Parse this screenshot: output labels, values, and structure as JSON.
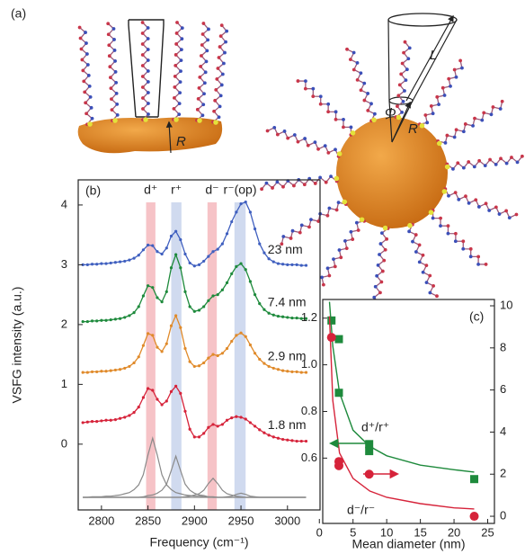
{
  "panel_a": {
    "label": "(a)",
    "left_radius_label": "R",
    "length_label": "L",
    "angle_label": "Φ",
    "right_radius_label": "R"
  },
  "chart_data": [
    {
      "type": "line",
      "panel_label": "(b)",
      "xlabel": "Frequency (cm⁻¹)",
      "ylabel": "VSFG intensity (a.u.)",
      "x": [
        2780,
        2785,
        2790,
        2795,
        2800,
        2805,
        2810,
        2815,
        2820,
        2825,
        2830,
        2835,
        2840,
        2845,
        2850,
        2855,
        2860,
        2865,
        2870,
        2875,
        2880,
        2885,
        2890,
        2895,
        2900,
        2905,
        2910,
        2915,
        2920,
        2925,
        2930,
        2935,
        2940,
        2945,
        2950,
        2955,
        2960,
        2965,
        2970,
        2975,
        2980,
        2985,
        2990,
        2995,
        3000,
        3005,
        3010,
        3015,
        3020
      ],
      "xlim": [
        2775,
        3035
      ],
      "xticks": [
        2800,
        2850,
        2900,
        2950,
        3000
      ],
      "ylim": [
        -1.1,
        4.42
      ],
      "yticks": [
        0,
        1,
        2,
        3,
        4
      ],
      "bands": [
        {
          "label": "d⁺",
          "from": 2848,
          "to": 2858,
          "color": "#f4b9bd"
        },
        {
          "label": "r⁺",
          "from": 2875,
          "to": 2886,
          "color": "#c8d3ec"
        },
        {
          "label": "d⁻",
          "from": 2914,
          "to": 2924,
          "color": "#f4b9bd"
        },
        {
          "label": "r⁻(op)",
          "from": 2943,
          "to": 2955,
          "color": "#c8d3ec"
        }
      ],
      "series": [
        {
          "name": "23 nm",
          "color": "#3f5fbf",
          "values": [
            3.0,
            3.0,
            3.01,
            3.01,
            3.02,
            3.02,
            3.03,
            3.04,
            3.05,
            3.06,
            3.08,
            3.11,
            3.16,
            3.25,
            3.33,
            3.32,
            3.22,
            3.18,
            3.28,
            3.48,
            3.56,
            3.42,
            3.18,
            3.03,
            2.98,
            3.0,
            3.06,
            3.14,
            3.22,
            3.26,
            3.35,
            3.52,
            3.72,
            3.88,
            4.02,
            4.05,
            3.88,
            3.6,
            3.35,
            3.2,
            3.1,
            3.05,
            3.02,
            3.01,
            3.0,
            3.0,
            3.0,
            2.99,
            2.99
          ]
        },
        {
          "name": "7.4 nm",
          "color": "#1e8a3c",
          "values": [
            2.05,
            2.05,
            2.06,
            2.06,
            2.07,
            2.07,
            2.08,
            2.09,
            2.1,
            2.12,
            2.15,
            2.2,
            2.3,
            2.48,
            2.65,
            2.62,
            2.45,
            2.38,
            2.55,
            2.95,
            3.17,
            2.95,
            2.55,
            2.3,
            2.22,
            2.24,
            2.3,
            2.4,
            2.48,
            2.5,
            2.58,
            2.7,
            2.85,
            2.97,
            3.02,
            2.92,
            2.72,
            2.5,
            2.35,
            2.25,
            2.19,
            2.16,
            2.14,
            2.13,
            2.12,
            2.11,
            2.11,
            2.1,
            2.1
          ]
        },
        {
          "name": "2.9 nm",
          "color": "#e08a2a",
          "values": [
            1.2,
            1.2,
            1.21,
            1.21,
            1.22,
            1.22,
            1.23,
            1.24,
            1.25,
            1.27,
            1.3,
            1.36,
            1.46,
            1.65,
            1.85,
            1.82,
            1.62,
            1.55,
            1.68,
            1.98,
            2.15,
            1.95,
            1.6,
            1.38,
            1.3,
            1.31,
            1.36,
            1.44,
            1.5,
            1.48,
            1.52,
            1.6,
            1.72,
            1.82,
            1.86,
            1.8,
            1.66,
            1.52,
            1.42,
            1.35,
            1.3,
            1.27,
            1.25,
            1.23,
            1.22,
            1.21,
            1.21,
            1.2,
            1.2
          ]
        },
        {
          "name": "1.8 nm",
          "color": "#d6233a",
          "values": [
            0.36,
            0.37,
            0.38,
            0.38,
            0.39,
            0.4,
            0.4,
            0.41,
            0.43,
            0.45,
            0.48,
            0.53,
            0.62,
            0.78,
            0.93,
            0.9,
            0.75,
            0.66,
            0.72,
            0.88,
            0.97,
            0.85,
            0.55,
            0.25,
            0.12,
            0.12,
            0.18,
            0.28,
            0.33,
            0.3,
            0.33,
            0.4,
            0.44,
            0.46,
            0.45,
            0.42,
            0.36,
            0.3,
            0.24,
            0.19,
            0.15,
            0.12,
            0.1,
            0.08,
            0.07,
            0.06,
            0.05,
            0.05,
            0.05
          ]
        }
      ],
      "fit_components": {
        "color": "#8a8a8a",
        "series": [
          {
            "values": [
              -0.89,
              -0.89,
              -0.88,
              -0.88,
              -0.88,
              -0.87,
              -0.87,
              -0.86,
              -0.85,
              -0.83,
              -0.81,
              -0.76,
              -0.68,
              -0.51,
              -0.18,
              0.1,
              -0.18,
              -0.51,
              -0.68,
              -0.76,
              -0.81,
              -0.83,
              -0.85,
              -0.86,
              -0.87,
              -0.87,
              -0.88,
              -0.88,
              -0.88,
              -0.89,
              -0.89,
              -0.89,
              -0.89,
              -0.89,
              -0.89,
              -0.89,
              -0.89,
              -0.89,
              -0.89,
              -0.89,
              -0.89,
              -0.89,
              -0.89,
              -0.89,
              -0.89,
              -0.89,
              -0.89,
              -0.89,
              -0.89
            ]
          },
          {
            "values": [
              -0.89,
              -0.89,
              -0.89,
              -0.89,
              -0.89,
              -0.89,
              -0.89,
              -0.89,
              -0.89,
              -0.89,
              -0.89,
              -0.89,
              -0.89,
              -0.88,
              -0.86,
              -0.85,
              -0.82,
              -0.77,
              -0.67,
              -0.44,
              -0.2,
              -0.44,
              -0.67,
              -0.77,
              -0.82,
              -0.85,
              -0.86,
              -0.88,
              -0.89,
              -0.89,
              -0.89,
              -0.89,
              -0.89,
              -0.89,
              -0.89,
              -0.89,
              -0.89,
              -0.89,
              -0.89,
              -0.89,
              -0.89,
              -0.89,
              -0.89,
              -0.89,
              -0.89,
              -0.89,
              -0.89,
              -0.89,
              -0.89
            ]
          },
          {
            "values": [
              -0.89,
              -0.89,
              -0.89,
              -0.89,
              -0.89,
              -0.89,
              -0.89,
              -0.89,
              -0.89,
              -0.89,
              -0.89,
              -0.89,
              -0.89,
              -0.89,
              -0.89,
              -0.89,
              -0.89,
              -0.89,
              -0.89,
              -0.89,
              -0.89,
              -0.89,
              -0.88,
              -0.87,
              -0.85,
              -0.83,
              -0.77,
              -0.66,
              -0.57,
              -0.66,
              -0.77,
              -0.83,
              -0.85,
              -0.87,
              -0.88,
              -0.89,
              -0.89,
              -0.89,
              -0.89,
              -0.89,
              -0.89,
              -0.89,
              -0.89,
              -0.89,
              -0.89,
              -0.89,
              -0.89,
              -0.89,
              -0.89
            ]
          },
          {
            "values": [
              -0.89,
              -0.89,
              -0.89,
              -0.89,
              -0.89,
              -0.89,
              -0.89,
              -0.89,
              -0.89,
              -0.89,
              -0.89,
              -0.89,
              -0.89,
              -0.89,
              -0.89,
              -0.89,
              -0.89,
              -0.89,
              -0.89,
              -0.89,
              -0.89,
              -0.89,
              -0.89,
              -0.89,
              -0.89,
              -0.89,
              -0.89,
              -0.89,
              -0.89,
              -0.89,
              -0.89,
              -0.88,
              -0.87,
              -0.84,
              -0.82,
              -0.84,
              -0.87,
              -0.88,
              -0.89,
              -0.89,
              -0.89,
              -0.89,
              -0.89,
              -0.89,
              -0.89,
              -0.89,
              -0.89,
              -0.89,
              -0.89
            ]
          }
        ]
      }
    },
    {
      "type": "scatter",
      "panel_label": "(c)",
      "xlabel": "Mean diameter (nm)",
      "xlim": [
        0.5,
        26
      ],
      "xticks": [
        0,
        5,
        10,
        15,
        20,
        25
      ],
      "ylim": [
        0.32,
        1.28
      ],
      "yticks": [
        {
          "value": 0.6,
          "label": "0.6"
        },
        {
          "value": 0.8,
          "label": "0.8"
        },
        {
          "value": 1.0,
          "label": "1.0"
        },
        {
          "value": 1.2,
          "label": "1.2"
        }
      ],
      "y2lim": [
        -0.34,
        10.3
      ],
      "y2ticks": [
        0,
        2,
        4,
        6,
        8,
        10
      ],
      "series": [
        {
          "name": "d⁺/r⁺",
          "color": "#1e8a3c",
          "marker": "square",
          "x": [
            1.8,
            2.9,
            2.9,
            7.4,
            7.4,
            23
          ],
          "values": [
            1.19,
            1.11,
            0.88,
            0.66,
            0.63,
            0.51
          ],
          "fit_x": [
            1.5,
            2,
            3,
            5,
            7.5,
            10,
            15,
            20,
            23
          ],
          "fit_values": [
            1.27,
            1.08,
            0.88,
            0.72,
            0.65,
            0.61,
            0.57,
            0.55,
            0.54
          ]
        },
        {
          "name": "d⁻/r⁻",
          "color": "#d6233a",
          "marker": "circle",
          "axis": "y2",
          "x": [
            1.8,
            2.9,
            2.9,
            7.4,
            23
          ],
          "values": [
            8.5,
            2.6,
            2.4,
            2.0,
            0.0
          ],
          "fit_x": [
            1.5,
            2,
            3,
            5,
            7.5,
            10,
            15,
            20,
            23
          ],
          "fit_values": [
            9.5,
            5.5,
            3.0,
            1.8,
            1.2,
            0.9,
            0.6,
            0.4,
            0.35
          ]
        }
      ]
    }
  ]
}
